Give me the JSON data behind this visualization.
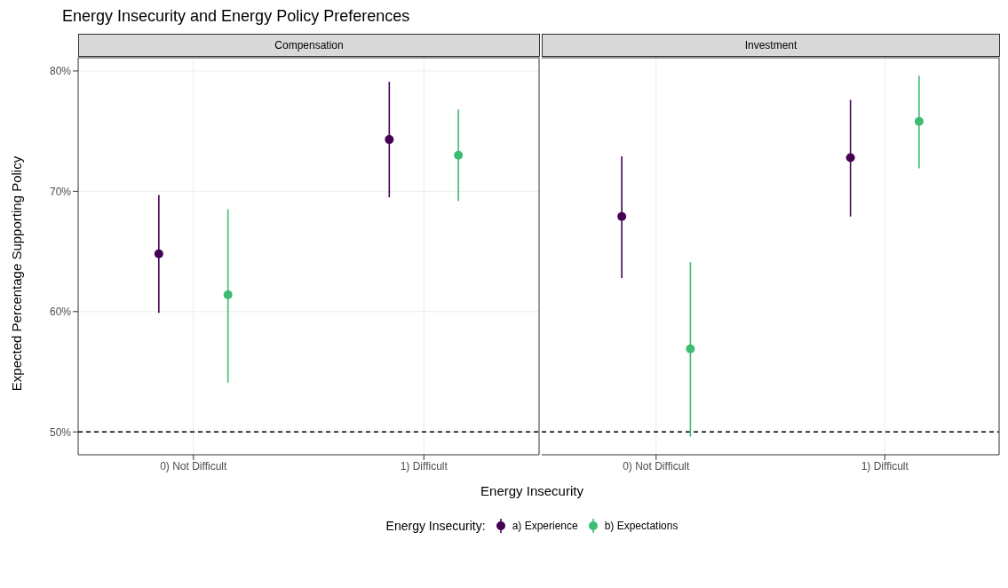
{
  "chart_data": [
    {
      "type": "scatter",
      "title": "Energy Insecurity and Energy Policy Preferences",
      "subtitle": "Compensation",
      "xlabel": "Energy Insecurity",
      "ylabel": "Expected Percentage Supporting Policy",
      "legend": "bottom",
      "legend_title": "Energy Insecurity:",
      "categories": [
        "0) Not Difficult",
        "1) Difficult"
      ],
      "ylim": [
        48.1,
        81.1
      ],
      "yticks": [
        {
          "value": 50,
          "label": "50%"
        },
        {
          "value": 60,
          "label": "60%"
        },
        {
          "value": 70,
          "label": "70%"
        },
        {
          "value": 80,
          "label": "80%"
        }
      ],
      "grid": true,
      "marker": "circle",
      "ref_lines": [
        {
          "axis": "y",
          "value": 50,
          "line_style": "dashed",
          "color": "#000000"
        }
      ],
      "series": [
        {
          "name": "a) Experience",
          "color": "#440154",
          "values": [
            64.8,
            74.3
          ],
          "errors": [
            [
              59.9,
              69.7
            ],
            [
              69.5,
              79.1
            ]
          ]
        },
        {
          "name": "b) Expectations",
          "color": "#3dbc74",
          "values": [
            61.4,
            73.0
          ],
          "errors": [
            [
              54.1,
              68.5
            ],
            [
              69.2,
              76.8
            ]
          ]
        }
      ]
    },
    {
      "type": "scatter",
      "title": "Investment",
      "categories": [
        "0) Not Difficult",
        "1) Difficult"
      ],
      "ylim": [
        48.1,
        81.1
      ],
      "tick_labels": "x",
      "grid": true,
      "marker": "circle",
      "ref_lines": [
        {
          "axis": "y",
          "value": 50,
          "line_style": "dashed",
          "color": "#000000"
        }
      ],
      "series": [
        {
          "color": "#440154",
          "values": [
            67.9,
            72.8
          ],
          "errors": [
            [
              62.8,
              72.9
            ],
            [
              67.9,
              77.6
            ]
          ]
        },
        {
          "color": "#3dbc74",
          "values": [
            56.9,
            75.8
          ],
          "errors": [
            [
              49.6,
              64.1
            ],
            [
              71.9,
              79.6
            ]
          ]
        }
      ]
    }
  ]
}
